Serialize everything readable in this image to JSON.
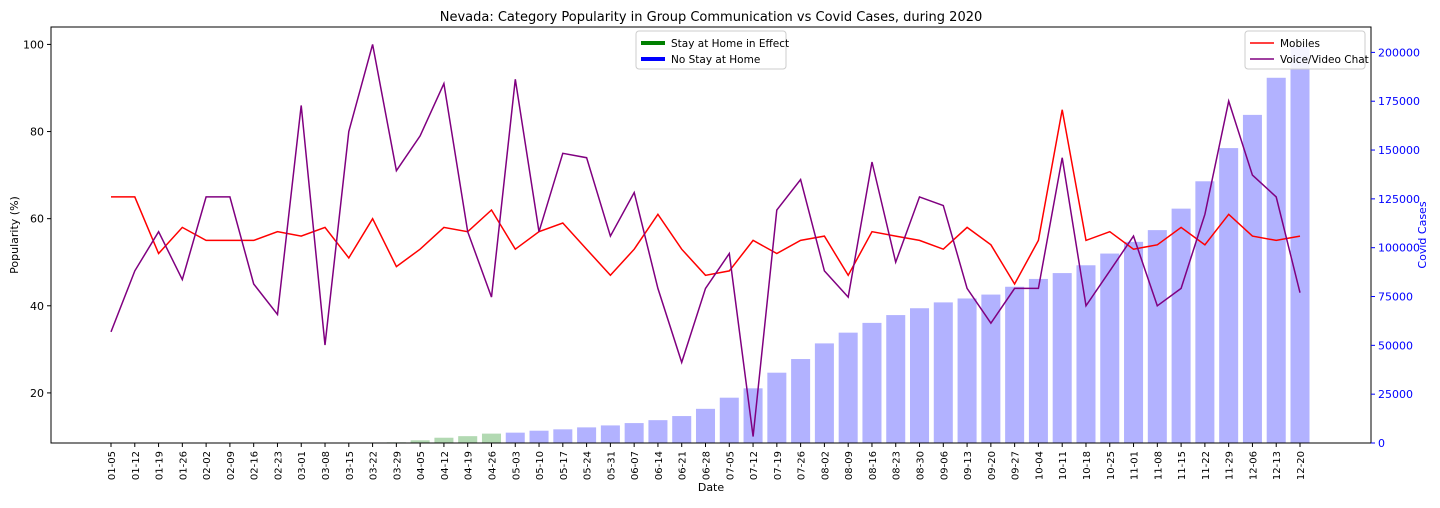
{
  "chart_data": {
    "type": "line",
    "title": "Nevada: Category Popularity in Group Communication vs Covid Cases, during 2020",
    "xlabel": "Date",
    "ylabel": "Popularity (%)",
    "y2label": "Covid Cases",
    "ylim": [
      8.5,
      104
    ],
    "y2lim": [
      0,
      213000
    ],
    "yticks": [
      20,
      40,
      60,
      80,
      100
    ],
    "y2ticks": [
      0,
      25000,
      50000,
      75000,
      100000,
      125000,
      150000,
      175000,
      200000
    ],
    "grid": false,
    "categories": [
      "01-05",
      "01-12",
      "01-19",
      "01-26",
      "02-02",
      "02-09",
      "02-16",
      "02-23",
      "03-01",
      "03-08",
      "03-15",
      "03-22",
      "03-29",
      "04-05",
      "04-12",
      "04-19",
      "04-26",
      "05-03",
      "05-10",
      "05-17",
      "05-24",
      "05-31",
      "06-07",
      "06-14",
      "06-21",
      "06-28",
      "07-05",
      "07-12",
      "07-19",
      "07-26",
      "08-02",
      "08-09",
      "08-16",
      "08-23",
      "08-30",
      "09-06",
      "09-13",
      "09-20",
      "09-27",
      "10-04",
      "10-11",
      "10-18",
      "10-25",
      "11-01",
      "11-08",
      "11-15",
      "11-22",
      "11-29",
      "12-06",
      "12-13",
      "12-20"
    ],
    "series": [
      {
        "name": "Mobiles",
        "color": "#ff0000",
        "axis": "left",
        "values": [
          65,
          65,
          52,
          58,
          55,
          55,
          55,
          57,
          56,
          58,
          51,
          60,
          49,
          53,
          58,
          57,
          62,
          53,
          57,
          59,
          53,
          47,
          53,
          61,
          53,
          47,
          48,
          55,
          52,
          55,
          56,
          47,
          57,
          56,
          55,
          53,
          58,
          54,
          45,
          55,
          85,
          55,
          57,
          53,
          54,
          58,
          54,
          61,
          56,
          55,
          56
        ]
      },
      {
        "name": "Voice/Video Chat",
        "color": "#800080",
        "axis": "left",
        "values": [
          34,
          48,
          57,
          46,
          65,
          65,
          45,
          38,
          86,
          31,
          80,
          100,
          71,
          79,
          91,
          57,
          42,
          92,
          57,
          75,
          74,
          56,
          66,
          44,
          27,
          44,
          52,
          10,
          62,
          69,
          48,
          42,
          73,
          50,
          65,
          63,
          44,
          36,
          44,
          44,
          74,
          40,
          48,
          56,
          40,
          44,
          61,
          87,
          70,
          65,
          43
        ]
      }
    ],
    "covid_cases": {
      "name": "Covid Cases",
      "values": [
        0,
        0,
        0,
        0,
        0,
        0,
        0,
        0,
        0,
        0,
        10,
        80,
        350,
        1400,
        2700,
        3500,
        4800,
        5300,
        6300,
        7000,
        8000,
        9000,
        10200,
        11700,
        13800,
        17500,
        23200,
        28000,
        36000,
        43000,
        51000,
        56500,
        61500,
        65500,
        69000,
        72000,
        74000,
        76000,
        80000,
        84000,
        87000,
        91000,
        97000,
        103000,
        109000,
        120000,
        134000,
        151000,
        168000,
        187000,
        203000
      ],
      "stay_home_color": "#008000",
      "no_stay_home_color": "#0000ff",
      "stay_home_end_index": 16
    },
    "legend_left": {
      "location": "top-center",
      "entries": [
        {
          "label": "Stay at Home in Effect",
          "color": "#008000"
        },
        {
          "label": "No Stay at Home",
          "color": "#0000ff"
        }
      ]
    },
    "legend_right": {
      "location": "top-right",
      "entries": [
        {
          "label": "Mobiles",
          "color": "#ff0000"
        },
        {
          "label": "Voice/Video Chat",
          "color": "#800080"
        }
      ]
    }
  }
}
